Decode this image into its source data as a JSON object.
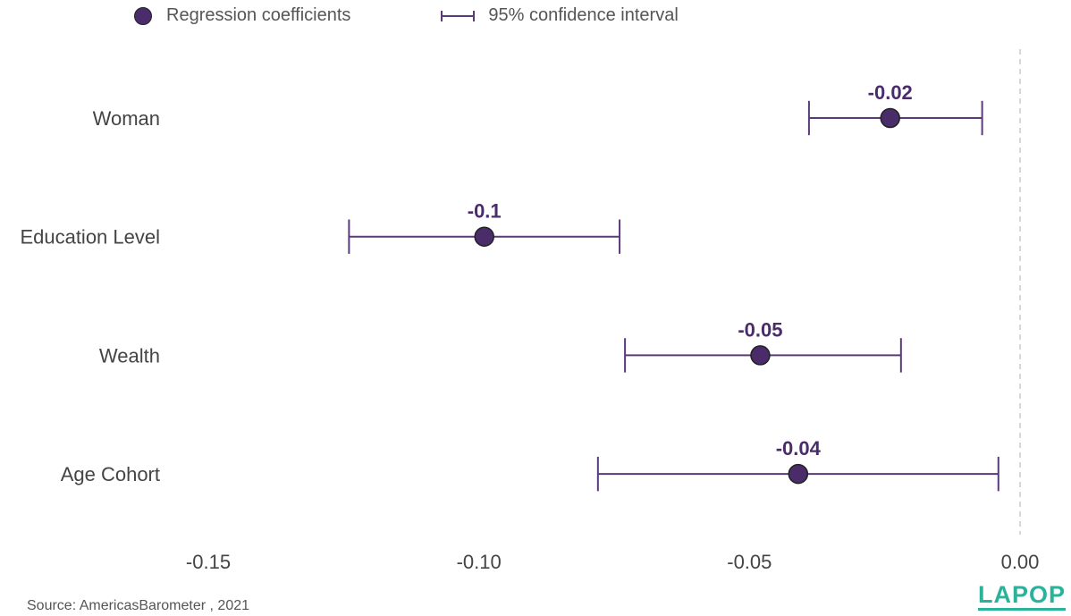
{
  "legend": {
    "point_label": "Regression coefficients",
    "ci_label": "95% confidence interval"
  },
  "source": "Source: AmericasBarometer , 2021",
  "logo_text": "LAPOP",
  "colors": {
    "point": "#4a2c6b",
    "ci": "#5b3a7a",
    "zero_line": "#cccccc",
    "logo": "#2ab29b"
  },
  "chart_data": {
    "type": "scatter",
    "subtype": "coefficient-plot",
    "xlim": [
      -0.18,
      0.0
    ],
    "x_ticks": [
      -0.15,
      -0.1,
      -0.05,
      0.0
    ],
    "x_tick_labels": [
      "-0.15",
      "-0.10",
      "-0.05",
      "0.00"
    ],
    "reference_line": 0.0,
    "grid": false,
    "legend_position": "top-left",
    "items": [
      {
        "label": "Woman",
        "coef": -0.024,
        "ci_low": -0.039,
        "ci_high": -0.007,
        "data_label": "-0.02"
      },
      {
        "label": "Education Level",
        "coef": -0.099,
        "ci_low": -0.124,
        "ci_high": -0.074,
        "data_label": "-0.1"
      },
      {
        "label": "Wealth",
        "coef": -0.048,
        "ci_low": -0.073,
        "ci_high": -0.022,
        "data_label": "-0.05"
      },
      {
        "label": "Age Cohort",
        "coef": -0.041,
        "ci_low": -0.078,
        "ci_high": -0.004,
        "data_label": "-0.04"
      }
    ]
  }
}
